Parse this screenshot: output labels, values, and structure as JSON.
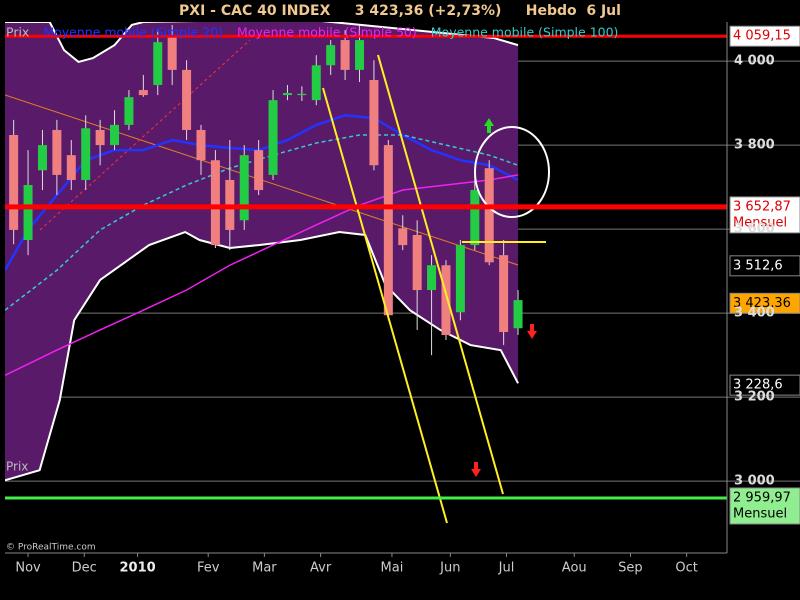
{
  "chart_data": {
    "type": "candlestick",
    "title": "PXI - CAC 40 INDEX     3 423,36 (+2,73%)     Hebdo  6 Jul",
    "watermark": "© ProRealTime.com",
    "xlim": [
      -0.6,
      49.5
    ],
    "xticks": [
      {
        "value": 1,
        "label": "Nov"
      },
      {
        "value": 4.9,
        "label": "Dec"
      },
      {
        "value": 8.6,
        "label": "2010",
        "bold": true
      },
      {
        "value": 13.5,
        "label": "Fev"
      },
      {
        "value": 17.4,
        "label": "Mar"
      },
      {
        "value": 21.3,
        "label": "Avr"
      },
      {
        "value": 26.25,
        "label": "Mai"
      },
      {
        "value": 30.3,
        "label": "Jun"
      },
      {
        "value": 34.2,
        "label": "Jul"
      },
      {
        "value": 38.9,
        "label": "Aou"
      },
      {
        "value": 42.8,
        "label": "Sep"
      },
      {
        "value": 46.7,
        "label": "Oct"
      }
    ],
    "ylim": [
      2829,
      4093
    ],
    "yticks": [
      {
        "value": 4000,
        "label": "4 000"
      },
      {
        "value": 3800,
        "label": "3 800"
      },
      {
        "value": 3600,
        "label": "3 600"
      },
      {
        "value": 3400,
        "label": "3 400"
      },
      {
        "value": 3200,
        "label": "3 200"
      },
      {
        "value": 3000,
        "label": "3 000"
      }
    ],
    "grid": true,
    "candles": {
      "name": "Prix",
      "up_color": "#22cc44",
      "down_color": "#f08080",
      "x": [
        0,
        1,
        2,
        3,
        4,
        5,
        6,
        7,
        8,
        9,
        10,
        11,
        12,
        13,
        14,
        15,
        16,
        17,
        18,
        19,
        20,
        21,
        22,
        23,
        24,
        25,
        26,
        27,
        28,
        29,
        30,
        31,
        32,
        33,
        34,
        35
      ],
      "open": [
        3824,
        3574,
        3740,
        3836,
        3776,
        3717,
        3836,
        3800,
        3848,
        3931,
        3943,
        4062,
        3979,
        3836,
        3764,
        3717,
        3621,
        3788,
        3729,
        3919,
        3919,
        3907,
        3990,
        4050,
        3979,
        3955,
        3800,
        3602,
        3586,
        3455,
        3514,
        3402,
        3562,
        3745,
        3538,
        3364
      ],
      "high": [
        3860,
        3788,
        3836,
        3860,
        3812,
        3871,
        3860,
        3883,
        3931,
        3967,
        4074,
        4086,
        4002,
        3848,
        3788,
        3812,
        3800,
        3812,
        3931,
        3943,
        3940,
        4014,
        4050,
        4074,
        4085,
        4002,
        3812,
        3633,
        3621,
        3538,
        3526,
        3574,
        3740,
        3764,
        3574,
        3455
      ],
      "low": [
        3564,
        3538,
        3693,
        3681,
        3693,
        3693,
        3752,
        3788,
        3836,
        3915,
        3919,
        3943,
        3812,
        3729,
        3555,
        3550,
        3598,
        3681,
        3717,
        3907,
        3905,
        3895,
        3967,
        3955,
        3950,
        3740,
        3383,
        3550,
        3360,
        3300,
        3336,
        3383,
        3550,
        3514,
        3324,
        3348
      ],
      "close": [
        3598,
        3705,
        3800,
        3729,
        3717,
        3840,
        3800,
        3848,
        3914,
        3919,
        4045,
        3979,
        3836,
        3764,
        3562,
        3598,
        3776,
        3693,
        3907,
        3924,
        3922,
        3990,
        4038,
        3979,
        4050,
        3752,
        3395,
        3562,
        3455,
        3514,
        3348,
        3562,
        3693,
        3521,
        3355,
        3431
      ]
    },
    "band": {
      "fill": "#5a1a6a",
      "line": "#ffffff",
      "upper": {
        "x": [
          -0.6,
          2.5,
          3.5,
          4.5,
          5.5,
          7,
          8.2,
          9,
          20,
          33.3,
          35
        ],
        "values": [
          4093,
          4093,
          4026,
          3998,
          4007,
          4038,
          4086,
          4093,
          4100,
          4055,
          4038
        ]
      },
      "lower": {
        "x": [
          -0.6,
          1.8,
          3.2,
          4.2,
          6,
          9.4,
          11.9,
          12.9,
          15,
          17,
          19.9,
          22.6,
          24.4,
          25.8,
          27.5,
          29.6,
          31.7,
          33.8,
          35
        ],
        "values": [
          3002,
          3026,
          3193,
          3383,
          3479,
          3562,
          3593,
          3574,
          3555,
          3562,
          3574,
          3593,
          3586,
          3467,
          3407,
          3360,
          3324,
          3312,
          3233
        ]
      }
    },
    "series": [
      {
        "name": "Moyenne mobile (Simple 20)",
        "color": "#2233ff",
        "x": [
          -0.6,
          1,
          3,
          5,
          7,
          9,
          11,
          13,
          15,
          17,
          19,
          21,
          23,
          25,
          27,
          29,
          31,
          33,
          35
        ],
        "values": [
          3502,
          3598,
          3681,
          3764,
          3788,
          3788,
          3812,
          3800,
          3793,
          3788,
          3812,
          3848,
          3871,
          3864,
          3824,
          3788,
          3764,
          3752,
          3717
        ]
      },
      {
        "name": "Moyenne mobile (Simple 50)",
        "color": "#ee22ee",
        "x": [
          -0.6,
          3,
          6,
          9,
          12,
          15,
          18,
          21,
          24,
          27,
          30,
          33,
          35
        ],
        "values": [
          3252,
          3312,
          3360,
          3407,
          3455,
          3514,
          3562,
          3610,
          3657,
          3693,
          3705,
          3717,
          3729
        ]
      },
      {
        "name": "Moyenne mobile (Simple 100)",
        "color": "#33cccc",
        "dashed": true,
        "x": [
          -0.6,
          3,
          6,
          9,
          12,
          15,
          18,
          21,
          24,
          27,
          30,
          33,
          35
        ],
        "values": [
          3407,
          3502,
          3598,
          3657,
          3705,
          3745,
          3776,
          3805,
          3824,
          3824,
          3800,
          3776,
          3752
        ]
      }
    ],
    "price_labels": [
      {
        "value": 4059.15,
        "label": "4 059,15",
        "bg": "#ffffff",
        "fg": "#dd0000",
        "line": "#ff0000"
      },
      {
        "value": 3652.87,
        "label": "3 652,87",
        "note": "Mensuel",
        "bg": "#ffffff",
        "fg": "#dd0000",
        "line": "#ff0000"
      },
      {
        "value": 3512.6,
        "label": "3 512,6",
        "bg": "#000000",
        "fg": "#ffffff"
      },
      {
        "value": 3423.36,
        "label": "3 423,36",
        "bg": "#ffa500",
        "fg": "#000000"
      },
      {
        "value": 3228.6,
        "label": "3 228,6",
        "bg": "#000000",
        "fg": "#ffffff"
      },
      {
        "value": 2959.97,
        "label": "2 959,97",
        "note": "Mensuel",
        "bg": "#90ee90",
        "fg": "#000000",
        "line": "#44ee44"
      }
    ]
  }
}
